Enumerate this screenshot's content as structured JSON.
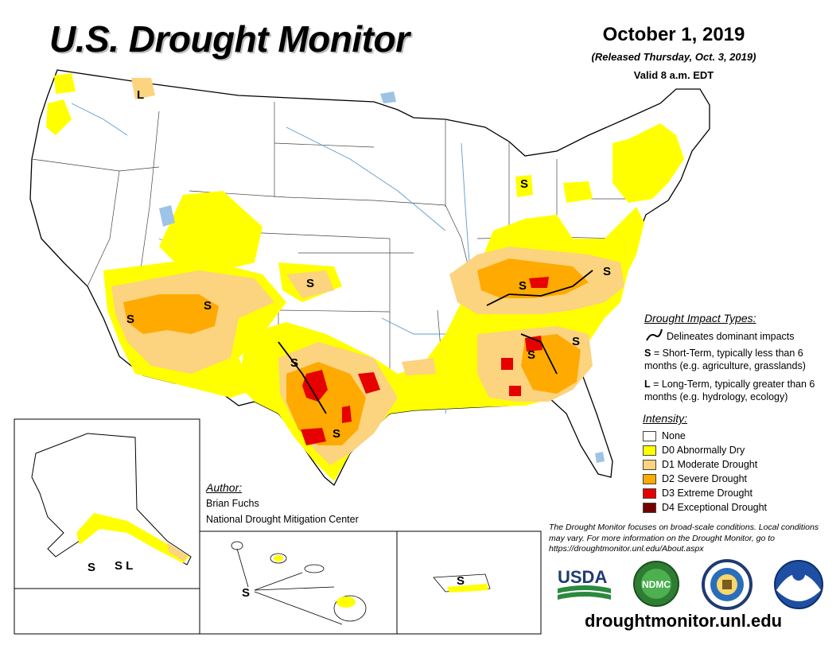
{
  "header": {
    "title": "U.S. Drought Monitor",
    "date": "October 1, 2019",
    "released": "(Released Thursday, Oct. 3, 2019)",
    "valid": "Valid 8 a.m. EDT"
  },
  "impact_legend": {
    "heading": "Drought Impact Types:",
    "dominant": "Delineates dominant impacts",
    "short_code": "S",
    "short_text": "= Short-Term, typically less than 6 months (e.g. agriculture, grasslands)",
    "long_code": "L",
    "long_text": "= Long-Term, typically greater than 6 months (e.g. hydrology, ecology)"
  },
  "intensity_legend": {
    "heading": "Intensity:",
    "items": [
      {
        "label": "None",
        "color": "#ffffff"
      },
      {
        "label": "D0 Abnormally Dry",
        "color": "#ffff00"
      },
      {
        "label": "D1 Moderate Drought",
        "color": "#fcd37f"
      },
      {
        "label": "D2 Severe Drought",
        "color": "#ffaa00"
      },
      {
        "label": "D3 Extreme Drought",
        "color": "#e60000"
      },
      {
        "label": "D4 Exceptional Drought",
        "color": "#730000"
      }
    ]
  },
  "author": {
    "heading": "Author:",
    "name": "Brian Fuchs",
    "org": "National Drought Mitigation Center"
  },
  "note": "The Drought Monitor focuses on broad-scale conditions. Local conditions may vary. For more information on the Drought Monitor, go to https://droughtmonitor.unl.edu/About.aspx",
  "website": "droughtmonitor.unl.edu",
  "logos": {
    "usda": "USDA",
    "ndmc": "NDMC"
  },
  "map_labels": {
    "s": "S",
    "l": "L",
    "sl": "S L"
  }
}
